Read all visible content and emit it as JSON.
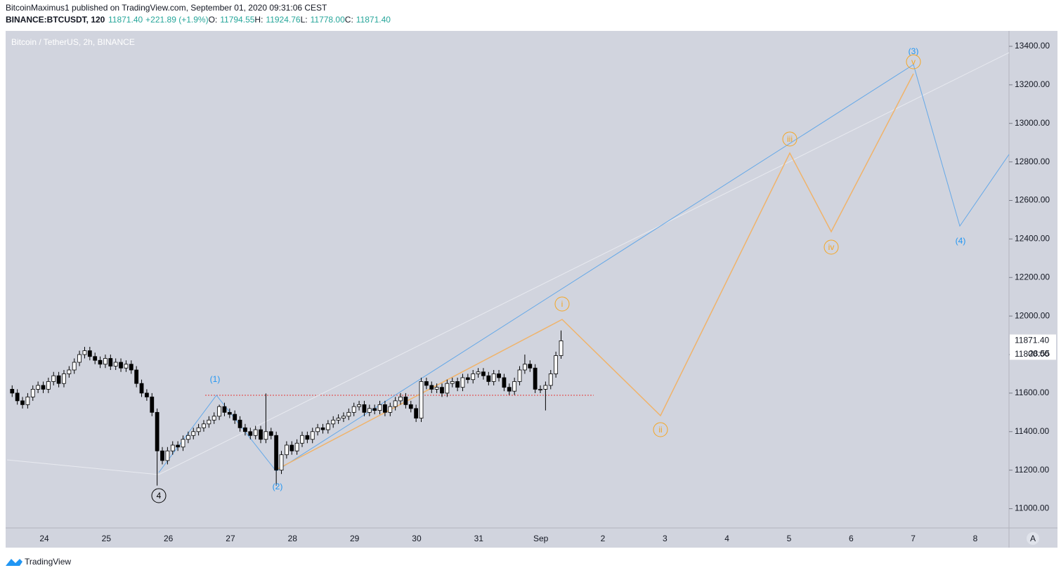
{
  "chart_data": {
    "type": "candlestick",
    "header": {
      "publisher": "BitcoinMaximus1 published on TradingView.com, September 01, 2020 09:31:06 CEST",
      "symbol": "BINANCE:BTCUSDT, 120",
      "last": "11871.40",
      "change": "+221.89 (+1.9%)",
      "o_label": "O:",
      "o": "11794.55",
      "h_label": "H:",
      "h": "11924.76",
      "l_label": "L:",
      "l": "11778.00",
      "c_label": "C:",
      "c": "11871.40"
    },
    "title": "Bitcoin / TetherUS, 2h, BINANCE",
    "price_tag": {
      "value": 11871.4,
      "label": "11871.40"
    },
    "countdown": "28:55",
    "x_labels": [
      24,
      25,
      26,
      27,
      28,
      29,
      30,
      31,
      "Sep",
      2,
      3,
      4,
      5,
      6,
      7,
      8
    ],
    "ylim": [
      10900,
      13480
    ],
    "yticks": [
      {
        "value": 11000,
        "label": "11000.00"
      },
      {
        "value": 11200,
        "label": "11200.00"
      },
      {
        "value": 11400,
        "label": "11400.00"
      },
      {
        "value": 11600,
        "label": "11600.00"
      },
      {
        "value": 11800,
        "label": "11800.00"
      },
      {
        "value": 12000,
        "label": "12000.00"
      },
      {
        "value": 12200,
        "label": "12200.00"
      },
      {
        "value": 12400,
        "label": "12400.00"
      },
      {
        "value": 12600,
        "label": "12600.00"
      },
      {
        "value": 12800,
        "label": "12800.00"
      },
      {
        "value": 13000,
        "label": "13000.00"
      },
      {
        "value": 13200,
        "label": "13200.00"
      },
      {
        "value": 13400,
        "label": "13400.00"
      }
    ],
    "up_color": "#ffffff",
    "down_color": "#000000",
    "ohlc": [
      [
        11620,
        11640,
        11580,
        11600
      ],
      [
        11600,
        11620,
        11540,
        11560
      ],
      [
        11560,
        11580,
        11520,
        11540
      ],
      [
        11540,
        11600,
        11520,
        11580
      ],
      [
        11580,
        11640,
        11560,
        11620
      ],
      [
        11620,
        11660,
        11600,
        11640
      ],
      [
        11640,
        11660,
        11600,
        11620
      ],
      [
        11620,
        11680,
        11600,
        11660
      ],
      [
        11660,
        11710,
        11640,
        11690
      ],
      [
        11690,
        11710,
        11630,
        11650
      ],
      [
        11650,
        11720,
        11630,
        11700
      ],
      [
        11700,
        11740,
        11680,
        11720
      ],
      [
        11720,
        11780,
        11700,
        11760
      ],
      [
        11760,
        11820,
        11740,
        11800
      ],
      [
        11800,
        11840,
        11780,
        11820
      ],
      [
        11820,
        11840,
        11770,
        11790
      ],
      [
        11790,
        11810,
        11750,
        11770
      ],
      [
        11770,
        11790,
        11730,
        11750
      ],
      [
        11750,
        11800,
        11730,
        11780
      ],
      [
        11780,
        11800,
        11720,
        11740
      ],
      [
        11740,
        11780,
        11720,
        11760
      ],
      [
        11760,
        11780,
        11710,
        11730
      ],
      [
        11730,
        11770,
        11710,
        11750
      ],
      [
        11750,
        11770,
        11700,
        11720
      ],
      [
        11720,
        11740,
        11630,
        11650
      ],
      [
        11650,
        11670,
        11580,
        11600
      ],
      [
        11600,
        11620,
        11560,
        11580
      ],
      [
        11580,
        11600,
        11480,
        11500
      ],
      [
        11500,
        11520,
        11120,
        11300
      ],
      [
        11300,
        11320,
        11230,
        11250
      ],
      [
        11250,
        11320,
        11230,
        11300
      ],
      [
        11300,
        11350,
        11280,
        11330
      ],
      [
        11330,
        11350,
        11300,
        11320
      ],
      [
        11320,
        11380,
        11300,
        11360
      ],
      [
        11360,
        11400,
        11340,
        11380
      ],
      [
        11380,
        11420,
        11360,
        11400
      ],
      [
        11400,
        11440,
        11380,
        11420
      ],
      [
        11420,
        11460,
        11400,
        11440
      ],
      [
        11440,
        11480,
        11420,
        11460
      ],
      [
        11460,
        11500,
        11440,
        11480
      ],
      [
        11480,
        11540,
        11460,
        11530
      ],
      [
        11530,
        11550,
        11480,
        11500
      ],
      [
        11500,
        11520,
        11470,
        11490
      ],
      [
        11490,
        11510,
        11440,
        11460
      ],
      [
        11460,
        11480,
        11400,
        11420
      ],
      [
        11420,
        11440,
        11380,
        11400
      ],
      [
        11400,
        11420,
        11360,
        11380
      ],
      [
        11380,
        11430,
        11360,
        11410
      ],
      [
        11410,
        11430,
        11340,
        11360
      ],
      [
        11360,
        11598,
        11340,
        11400
      ],
      [
        11400,
        11420,
        11360,
        11380
      ],
      [
        11380,
        11400,
        11120,
        11200
      ],
      [
        11200,
        11300,
        11180,
        11280
      ],
      [
        11280,
        11350,
        11260,
        11330
      ],
      [
        11330,
        11350,
        11280,
        11300
      ],
      [
        11300,
        11360,
        11280,
        11340
      ],
      [
        11340,
        11400,
        11320,
        11380
      ],
      [
        11380,
        11400,
        11340,
        11360
      ],
      [
        11360,
        11420,
        11340,
        11400
      ],
      [
        11400,
        11440,
        11380,
        11420
      ],
      [
        11420,
        11440,
        11390,
        11410
      ],
      [
        11410,
        11460,
        11390,
        11440
      ],
      [
        11440,
        11480,
        11420,
        11460
      ],
      [
        11460,
        11490,
        11440,
        11470
      ],
      [
        11470,
        11500,
        11450,
        11480
      ],
      [
        11480,
        11520,
        11460,
        11500
      ],
      [
        11500,
        11550,
        11480,
        11530
      ],
      [
        11530,
        11560,
        11510,
        11540
      ],
      [
        11540,
        11560,
        11480,
        11500
      ],
      [
        11500,
        11540,
        11480,
        11520
      ],
      [
        11520,
        11540,
        11490,
        11510
      ],
      [
        11510,
        11560,
        11490,
        11540
      ],
      [
        11540,
        11560,
        11480,
        11500
      ],
      [
        11500,
        11550,
        11480,
        11530
      ],
      [
        11530,
        11580,
        11510,
        11560
      ],
      [
        11560,
        11600,
        11540,
        11580
      ],
      [
        11580,
        11600,
        11520,
        11540
      ],
      [
        11540,
        11560,
        11500,
        11520
      ],
      [
        11520,
        11540,
        11450,
        11470
      ],
      [
        11470,
        11680,
        11450,
        11660
      ],
      [
        11660,
        11680,
        11620,
        11640
      ],
      [
        11640,
        11660,
        11600,
        11620
      ],
      [
        11620,
        11650,
        11600,
        11630
      ],
      [
        11630,
        11650,
        11580,
        11600
      ],
      [
        11600,
        11670,
        11580,
        11650
      ],
      [
        11650,
        11680,
        11630,
        11660
      ],
      [
        11660,
        11680,
        11610,
        11630
      ],
      [
        11630,
        11700,
        11610,
        11680
      ],
      [
        11680,
        11700,
        11650,
        11670
      ],
      [
        11670,
        11720,
        11650,
        11700
      ],
      [
        11700,
        11730,
        11680,
        11710
      ],
      [
        11710,
        11730,
        11670,
        11690
      ],
      [
        11690,
        11710,
        11640,
        11660
      ],
      [
        11660,
        11720,
        11640,
        11700
      ],
      [
        11700,
        11720,
        11660,
        11680
      ],
      [
        11680,
        11700,
        11610,
        11630
      ],
      [
        11630,
        11650,
        11590,
        11610
      ],
      [
        11610,
        11680,
        11590,
        11660
      ],
      [
        11660,
        11740,
        11640,
        11720
      ],
      [
        11720,
        11800,
        11700,
        11750
      ],
      [
        11750,
        11770,
        11710,
        11730
      ],
      [
        11730,
        11750,
        11600,
        11620
      ],
      [
        11620,
        11640,
        11600,
        11620
      ],
      [
        11620,
        11660,
        11510,
        11640
      ],
      [
        11640,
        11720,
        11620,
        11700
      ],
      [
        11700,
        11815,
        11680,
        11794.55
      ],
      [
        11794.55,
        11924.76,
        11778,
        11871.4
      ]
    ],
    "wave_labels": {
      "w1": "(1)",
      "w2": "(2)",
      "w3": "(3)",
      "w4": "(4)",
      "prior4": "4",
      "i": "i",
      "ii": "ii",
      "iii": "iii",
      "iv": "iv",
      "v": "v"
    },
    "footer": "TradingView",
    "auto_button": "A"
  }
}
